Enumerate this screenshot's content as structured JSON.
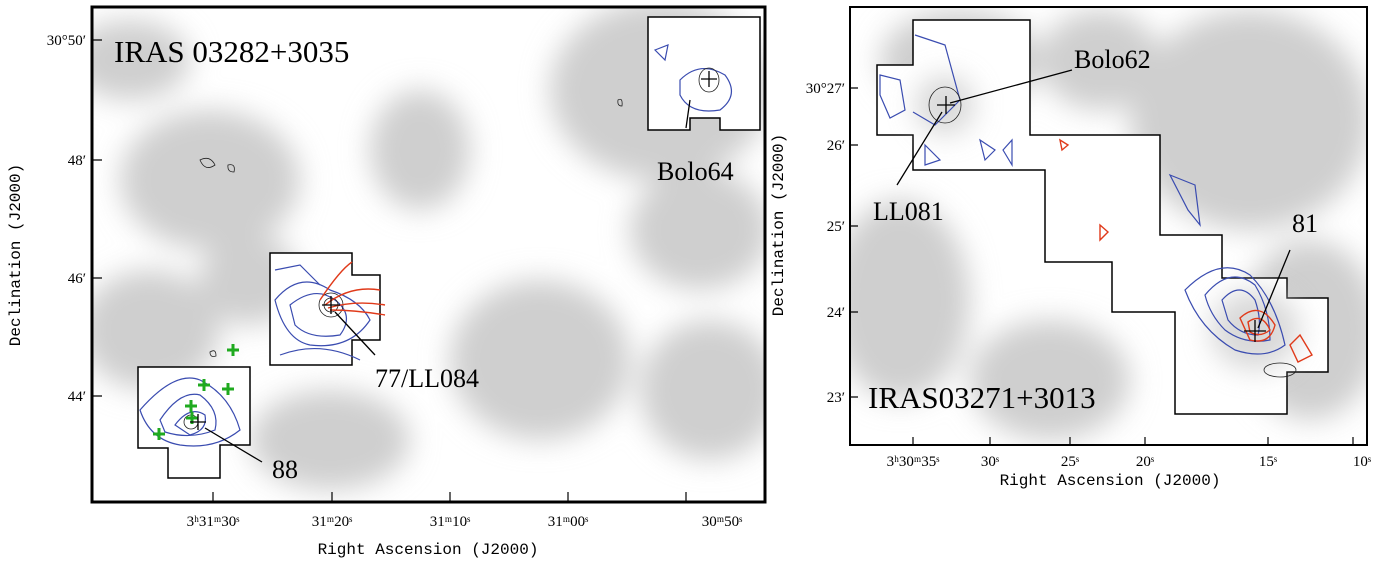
{
  "panels": [
    {
      "title": "IRAS 03282+3035",
      "x_label": "Right Ascension (J2000)",
      "y_label": "Declination (J2000)",
      "x_ticks": [
        "3ʰ31ᵐ30ˢ",
        "31ᵐ20ˢ",
        "31ᵐ10ˢ",
        "31ᵐ00ˢ",
        "30ᵐ50ˢ"
      ],
      "y_ticks": [
        "30°50′",
        "48′",
        "46′",
        "44′"
      ],
      "annotations": [
        "Bolo64",
        "77/LL084",
        "88"
      ]
    },
    {
      "title": "IRAS03271+3013",
      "x_label": "Right Ascension (J2000)",
      "y_label": "Declination (J2000)",
      "x_ticks": [
        "3ʰ30ᵐ35ˢ",
        "30ˢ",
        "25ˢ",
        "20ˢ",
        "15ˢ",
        "10ˢ"
      ],
      "y_ticks": [
        "30°27′",
        "26′",
        "25′",
        "24′",
        "23′"
      ],
      "annotations": [
        "Bolo62",
        "LL081",
        "81"
      ]
    }
  ]
}
